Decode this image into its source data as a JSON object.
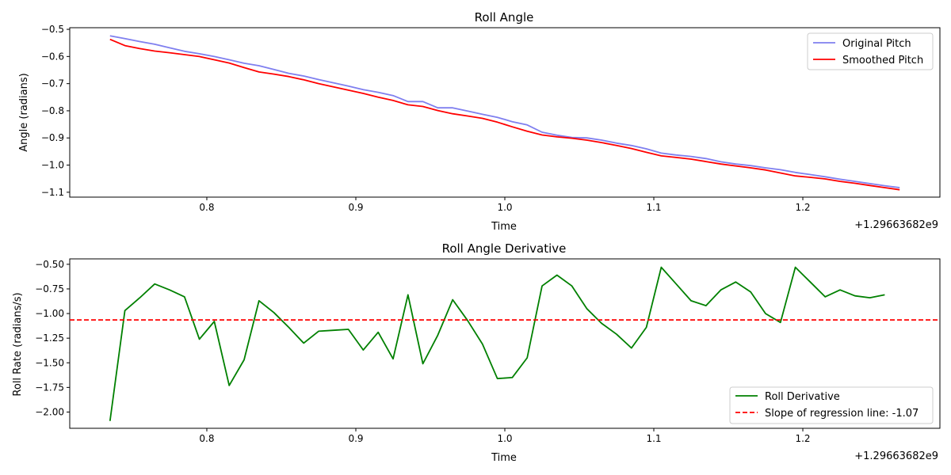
{
  "chart_data": [
    {
      "type": "line",
      "title": "Roll Angle",
      "xlabel": "Time",
      "ylabel": "Angle (radians)",
      "x_offset_label": "+1.29663682e9",
      "xlim": [
        0.708,
        1.292
      ],
      "ylim": [
        -1.118,
        -0.494
      ],
      "x_ticks": [
        0.8,
        0.9,
        1.0,
        1.1,
        1.2
      ],
      "x_tick_labels": [
        "0.8",
        "0.9",
        "1.0",
        "1.1",
        "1.2"
      ],
      "y_ticks": [
        -0.5,
        -0.6,
        -0.7,
        -0.8,
        -0.9,
        -1.0,
        -1.1
      ],
      "y_tick_labels": [
        "−0.5",
        "−0.6",
        "−0.7",
        "−0.8",
        "−0.9",
        "−1.0",
        "−1.1"
      ],
      "legend_position": "top-right",
      "x": [
        0.735,
        0.745,
        0.755,
        0.765,
        0.775,
        0.785,
        0.795,
        0.805,
        0.815,
        0.825,
        0.835,
        0.845,
        0.855,
        0.865,
        0.875,
        0.885,
        0.895,
        0.905,
        0.915,
        0.925,
        0.935,
        0.945,
        0.955,
        0.965,
        0.975,
        0.985,
        0.995,
        1.005,
        1.015,
        1.025,
        1.035,
        1.045,
        1.055,
        1.065,
        1.075,
        1.085,
        1.095,
        1.105,
        1.115,
        1.125,
        1.135,
        1.145,
        1.155,
        1.165,
        1.175,
        1.185,
        1.195,
        1.205,
        1.215,
        1.225,
        1.235,
        1.245,
        1.255,
        1.265
      ],
      "series": [
        {
          "name": "Original Pitch",
          "color": "#7f7fef",
          "values": [
            -0.524,
            -0.534,
            -0.545,
            -0.555,
            -0.568,
            -0.581,
            -0.59,
            -0.6,
            -0.612,
            -0.625,
            -0.634,
            -0.648,
            -0.662,
            -0.672,
            -0.685,
            -0.697,
            -0.709,
            -0.722,
            -0.732,
            -0.744,
            -0.766,
            -0.766,
            -0.789,
            -0.789,
            -0.801,
            -0.813,
            -0.824,
            -0.84,
            -0.852,
            -0.879,
            -0.89,
            -0.898,
            -0.9,
            -0.908,
            -0.919,
            -0.928,
            -0.94,
            -0.956,
            -0.963,
            -0.968,
            -0.976,
            -0.988,
            -0.996,
            -1.002,
            -1.01,
            -1.017,
            -1.027,
            -1.035,
            -1.043,
            -1.052,
            -1.06,
            -1.068,
            -1.076,
            -1.083
          ]
        },
        {
          "name": "Smoothed Pitch",
          "color": "#ff0000",
          "values": [
            -0.537,
            -0.56,
            -0.571,
            -0.58,
            -0.586,
            -0.593,
            -0.6,
            -0.612,
            -0.624,
            -0.641,
            -0.657,
            -0.665,
            -0.674,
            -0.686,
            -0.7,
            -0.712,
            -0.724,
            -0.736,
            -0.75,
            -0.762,
            -0.778,
            -0.784,
            -0.799,
            -0.811,
            -0.819,
            -0.828,
            -0.842,
            -0.859,
            -0.875,
            -0.889,
            -0.896,
            -0.901,
            -0.908,
            -0.917,
            -0.928,
            -0.939,
            -0.953,
            -0.966,
            -0.972,
            -0.978,
            -0.987,
            -0.996,
            -1.003,
            -1.01,
            -1.018,
            -1.029,
            -1.04,
            -1.045,
            -1.051,
            -1.06,
            -1.067,
            -1.075,
            -1.083,
            -1.091
          ]
        }
      ]
    },
    {
      "type": "line",
      "title": "Roll Angle Derivative",
      "xlabel": "Time",
      "ylabel": "Roll Rate (radians/s)",
      "x_offset_label": "+1.29663682e9",
      "xlim": [
        0.708,
        1.292
      ],
      "ylim": [
        -2.165,
        -0.445
      ],
      "x_ticks": [
        0.8,
        0.9,
        1.0,
        1.1,
        1.2
      ],
      "x_tick_labels": [
        "0.8",
        "0.9",
        "1.0",
        "1.1",
        "1.2"
      ],
      "y_ticks": [
        -0.5,
        -0.75,
        -1.0,
        -1.25,
        -1.5,
        -1.75,
        -2.0
      ],
      "y_tick_labels": [
        "−0.50",
        "−0.75",
        "−1.00",
        "−1.25",
        "−1.50",
        "−1.75",
        "−2.00"
      ],
      "legend_position": "bottom-right",
      "x": [
        0.735,
        0.745,
        0.755,
        0.765,
        0.775,
        0.785,
        0.795,
        0.805,
        0.815,
        0.825,
        0.835,
        0.845,
        0.855,
        0.865,
        0.875,
        0.885,
        0.895,
        0.905,
        0.915,
        0.925,
        0.935,
        0.945,
        0.955,
        0.965,
        0.975,
        0.985,
        0.995,
        1.005,
        1.015,
        1.025,
        1.035,
        1.045,
        1.055,
        1.065,
        1.075,
        1.085,
        1.095,
        1.105,
        1.115,
        1.125,
        1.135,
        1.145,
        1.155,
        1.165,
        1.175,
        1.185,
        1.195,
        1.205,
        1.215,
        1.225,
        1.235,
        1.245,
        1.255
      ],
      "series": [
        {
          "name": "Roll Derivative",
          "color": "#008000",
          "style": "solid",
          "values": [
            -2.09,
            -0.97,
            -0.84,
            -0.7,
            -0.76,
            -0.83,
            -1.26,
            -1.08,
            -1.73,
            -1.47,
            -0.87,
            -0.99,
            -1.14,
            -1.3,
            -1.18,
            -1.17,
            -1.16,
            -1.37,
            -1.19,
            -1.46,
            -0.81,
            -1.51,
            -1.22,
            -0.86,
            -1.07,
            -1.31,
            -1.66,
            -1.65,
            -1.45,
            -0.72,
            -0.61,
            -0.72,
            -0.95,
            -1.1,
            -1.21,
            -1.35,
            -1.14,
            -0.53,
            -0.7,
            -0.87,
            -0.92,
            -0.76,
            -0.68,
            -0.78,
            -1.0,
            -1.09,
            -0.53,
            -0.68,
            -0.83,
            -0.76,
            -0.82,
            -0.84,
            -0.81
          ]
        },
        {
          "name": "Slope of regression line: -1.07",
          "color": "#ff0000",
          "style": "dashed",
          "constant": -1.065
        }
      ]
    }
  ]
}
